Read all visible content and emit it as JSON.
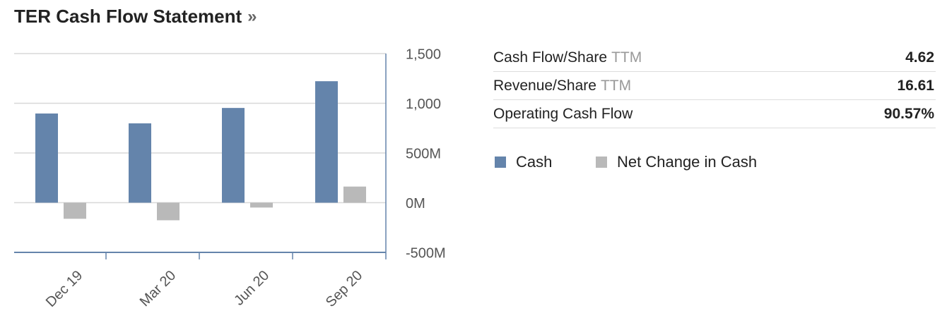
{
  "chart_data": {
    "type": "bar",
    "title": "TER Cash Flow Statement",
    "title_suffix": "»",
    "categories": [
      "Dec 19",
      "Mar 20",
      "Jun 20",
      "Sep 20"
    ],
    "series": [
      {
        "name": "Cash",
        "color": "#6484ab",
        "values": [
          897,
          798,
          953,
          1222
        ]
      },
      {
        "name": "Net Change in Cash",
        "color": "#b9b9b9",
        "values": [
          -162,
          -177,
          -49,
          162
        ]
      }
    ],
    "ylim": [
      -500,
      1500
    ],
    "yticks": [
      {
        "value": 1500,
        "label": "1,500"
      },
      {
        "value": 1000,
        "label": "1,000"
      },
      {
        "value": 500,
        "label": "500M"
      },
      {
        "value": 0,
        "label": "0M"
      },
      {
        "value": -500,
        "label": "-500M"
      }
    ],
    "grid": true,
    "legend": "right"
  },
  "stats": {
    "rows": [
      {
        "label": "Cash Flow/Share",
        "suffix": "TTM",
        "value": "4.62"
      },
      {
        "label": "Revenue/Share",
        "suffix": "TTM",
        "value": "16.61"
      },
      {
        "label": "Operating Cash Flow",
        "value": "90.57%"
      }
    ]
  }
}
